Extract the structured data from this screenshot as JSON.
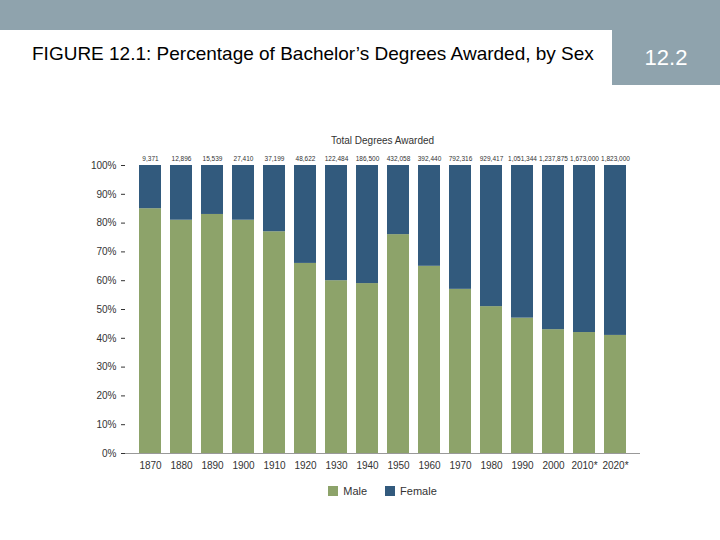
{
  "slide": {
    "number": "12.2"
  },
  "chart_data": {
    "type": "bar",
    "title": "FIGURE 12.1: Percentage of Bachelor’s Degrees Awarded, by Sex",
    "stacked": true,
    "categories": [
      "1870",
      "1880",
      "1890",
      "1900",
      "1910",
      "1920",
      "1930",
      "1940",
      "1950",
      "1960",
      "1970",
      "1980",
      "1990",
      "2000",
      "2010*",
      "2020*"
    ],
    "series": [
      {
        "name": "Male",
        "color": "#8da36a",
        "values": [
          85,
          81,
          83,
          81,
          77,
          66,
          60,
          59,
          76,
          65,
          57,
          51,
          47,
          43,
          42,
          41
        ]
      },
      {
        "name": "Female",
        "color": "#325a7d",
        "values": [
          15,
          19,
          17,
          19,
          23,
          34,
          40,
          41,
          24,
          35,
          43,
          49,
          53,
          57,
          58,
          59
        ]
      }
    ],
    "totals_title": "Total Degrees Awarded",
    "totals": [
      9371,
      12896,
      15539,
      27410,
      37199,
      48622,
      122484,
      186500,
      432058,
      392440,
      792316,
      929417,
      1051344,
      1237875,
      1673000,
      1823000
    ],
    "ylim": [
      0,
      100
    ],
    "yticks": [
      {
        "value": 0,
        "label": "0%"
      },
      {
        "value": 10,
        "label": "10%"
      },
      {
        "value": 20,
        "label": "20%"
      },
      {
        "value": 30,
        "label": "30%"
      },
      {
        "value": 40,
        "label": "40%"
      },
      {
        "value": 50,
        "label": "50%"
      },
      {
        "value": 60,
        "label": "60%"
      },
      {
        "value": 70,
        "label": "70%"
      },
      {
        "value": 80,
        "label": "80%"
      },
      {
        "value": 90,
        "label": "90%"
      },
      {
        "value": 100,
        "label": "100%"
      }
    ],
    "grid": false,
    "legend": "bottom"
  }
}
